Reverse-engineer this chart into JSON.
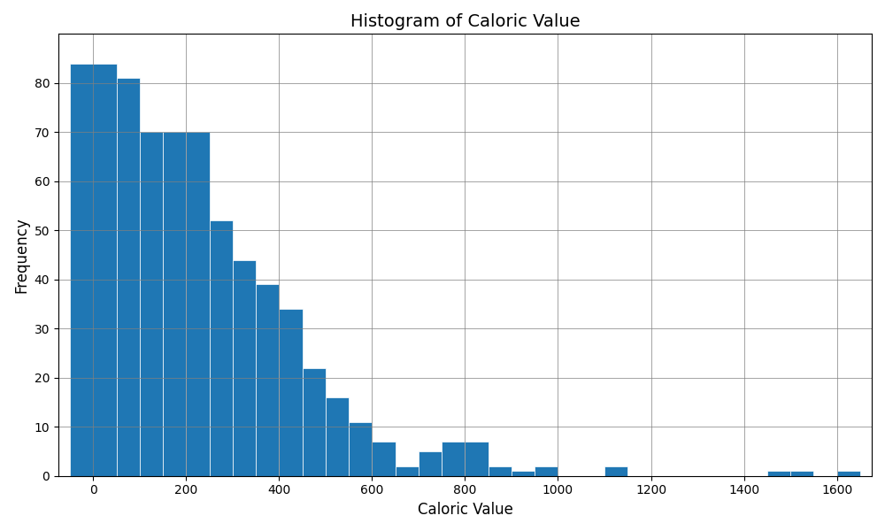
{
  "title": "Histogram of Caloric Value",
  "xlabel": "Caloric Value",
  "ylabel": "Frequency",
  "bar_color": "#1f77b4",
  "edge_color": "white",
  "bin_edges": [
    -50,
    50,
    100,
    150,
    200,
    250,
    300,
    350,
    400,
    450,
    500,
    550,
    600,
    650,
    700,
    750,
    800,
    850,
    900,
    950,
    1000,
    1050,
    1100,
    1150,
    1200,
    1250,
    1300,
    1350,
    1400,
    1450,
    1500,
    1550,
    1600,
    1650
  ],
  "counts": [
    84,
    81,
    70,
    70,
    70,
    52,
    44,
    39,
    34,
    22,
    16,
    11,
    7,
    2,
    5,
    7,
    7,
    2,
    1,
    2,
    0,
    0,
    2,
    0,
    0,
    0,
    0,
    0,
    0,
    1,
    1,
    0,
    1
  ],
  "xlim": [
    -75,
    1675
  ],
  "ylim": [
    0,
    90
  ],
  "xticks": [
    0,
    200,
    400,
    600,
    800,
    1000,
    1200,
    1400,
    1600
  ],
  "yticks": [
    0,
    10,
    20,
    30,
    40,
    50,
    60,
    70,
    80
  ],
  "figsize": [
    10.0,
    6.0
  ],
  "dpi": 100,
  "title_fontsize": 14,
  "label_fontsize": 12
}
